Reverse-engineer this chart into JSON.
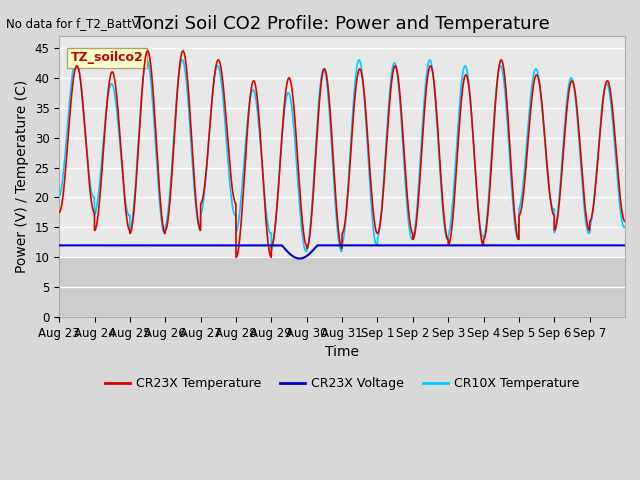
{
  "title": "Tonzi Soil CO2 Profile: Power and Temperature",
  "no_data_label": "No data for f_T2_BattV",
  "ylabel": "Power (V) / Temperature (C)",
  "xlabel": "Time",
  "ylim": [
    0,
    47
  ],
  "yticks": [
    0,
    5,
    10,
    15,
    20,
    25,
    30,
    35,
    40,
    45
  ],
  "xtick_labels": [
    "Aug 23",
    "Aug 24",
    "Aug 25",
    "Aug 26",
    "Aug 27",
    "Aug 28",
    "Aug 29",
    "Aug 30",
    "Aug 31",
    "Sep 1",
    "Sep 2",
    "Sep 3",
    "Sep 4",
    "Sep 5",
    "Sep 6",
    "Sep 7"
  ],
  "legend_labels": [
    "CR23X Temperature",
    "CR23X Voltage",
    "CR10X Temperature"
  ],
  "cr23x_temp_color": "#dd0000",
  "cr10x_temp_color": "#00ccff",
  "cr23x_volt_color": "#0000cc",
  "voltage_level": 12.0,
  "annotation_text": "TZ_soilco2",
  "annotation_color": "#cc0000",
  "annotation_bg": "#ffffcc",
  "grid_color": "#ffffff",
  "title_fontsize": 13,
  "label_fontsize": 10,
  "tick_fontsize": 8.5
}
